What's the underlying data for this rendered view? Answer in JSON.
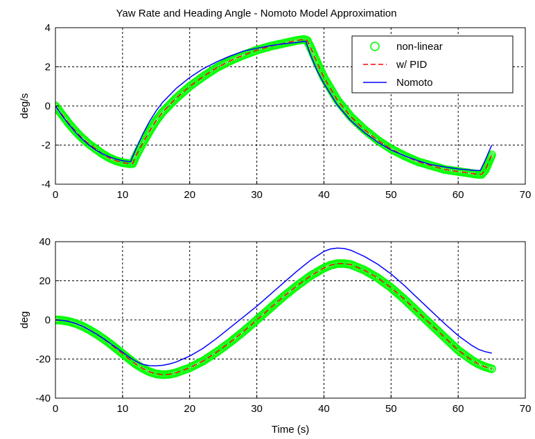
{
  "chart_data": [
    {
      "type": "line",
      "title": "Yaw Rate and Heading Angle - Nomoto Model Approximation",
      "xlabel": "",
      "ylabel": "deg/s",
      "xlim": [
        0,
        70
      ],
      "ylim": [
        -4,
        4
      ],
      "xticks": [
        "0",
        "10",
        "20",
        "30",
        "40",
        "50",
        "60",
        "70"
      ],
      "yticks": [
        "-4",
        "-2",
        "0",
        "2",
        "4"
      ],
      "grid": true,
      "legend_position": "top-right",
      "series": [
        {
          "name": "non-linear",
          "color": "#00ff00",
          "marker": "circle",
          "x": [
            0,
            1,
            2,
            3,
            4,
            5,
            6,
            7,
            8,
            9,
            10,
            11,
            11.5,
            12,
            13,
            14,
            15,
            16,
            18,
            20,
            22,
            24,
            26,
            28,
            30,
            32,
            34,
            36,
            37,
            37.5,
            38,
            39,
            40,
            42,
            44,
            46,
            48,
            50,
            52,
            54,
            56,
            58,
            60,
            62,
            63,
            63.5,
            64,
            64.5,
            65
          ],
          "y": [
            0,
            -0.45,
            -0.9,
            -1.3,
            -1.65,
            -1.95,
            -2.2,
            -2.45,
            -2.65,
            -2.8,
            -2.9,
            -2.95,
            -2.95,
            -2.55,
            -1.9,
            -1.3,
            -0.75,
            -0.3,
            0.4,
            1.0,
            1.5,
            1.95,
            2.3,
            2.6,
            2.85,
            3.05,
            3.2,
            3.35,
            3.4,
            3.35,
            3.0,
            2.2,
            1.45,
            0.3,
            -0.55,
            -1.2,
            -1.75,
            -2.2,
            -2.55,
            -2.85,
            -3.05,
            -3.25,
            -3.35,
            -3.45,
            -3.5,
            -3.5,
            -3.3,
            -2.9,
            -2.5
          ]
        },
        {
          "name": "w/ PID",
          "color": "#ff0000",
          "style": "dashed",
          "x": [
            0,
            1,
            2,
            3,
            4,
            5,
            6,
            7,
            8,
            9,
            10,
            11,
            11.5,
            12,
            13,
            14,
            15,
            16,
            18,
            20,
            22,
            24,
            26,
            28,
            30,
            32,
            34,
            36,
            37,
            37.5,
            38,
            39,
            40,
            42,
            44,
            46,
            48,
            50,
            52,
            54,
            56,
            58,
            60,
            62,
            63,
            63.5,
            64,
            64.5,
            65
          ],
          "y": [
            0,
            -0.45,
            -0.9,
            -1.3,
            -1.65,
            -1.95,
            -2.2,
            -2.45,
            -2.65,
            -2.8,
            -2.9,
            -2.95,
            -2.95,
            -2.55,
            -1.9,
            -1.3,
            -0.75,
            -0.3,
            0.4,
            1.0,
            1.5,
            1.95,
            2.3,
            2.6,
            2.85,
            3.05,
            3.2,
            3.35,
            3.4,
            3.35,
            3.0,
            2.2,
            1.45,
            0.3,
            -0.55,
            -1.2,
            -1.75,
            -2.2,
            -2.55,
            -2.85,
            -3.05,
            -3.25,
            -3.35,
            -3.45,
            -3.5,
            -3.5,
            -3.3,
            -2.9,
            -2.5
          ]
        },
        {
          "name": "Nomoto",
          "color": "#0000ff",
          "style": "solid",
          "x": [
            0,
            1,
            2,
            3,
            4,
            5,
            6,
            7,
            8,
            9,
            10,
            11,
            11.2,
            12,
            13,
            14,
            15,
            16,
            18,
            20,
            22,
            24,
            26,
            28,
            30,
            32,
            34,
            36,
            37,
            37.3,
            38,
            39,
            40,
            42,
            44,
            46,
            48,
            50,
            52,
            54,
            56,
            58,
            60,
            62,
            63,
            63.3,
            64,
            64.5,
            65
          ],
          "y": [
            0,
            -0.5,
            -0.95,
            -1.35,
            -1.7,
            -2.0,
            -2.25,
            -2.45,
            -2.6,
            -2.72,
            -2.8,
            -2.85,
            -2.85,
            -2.2,
            -1.45,
            -0.8,
            -0.25,
            0.2,
            0.9,
            1.45,
            1.9,
            2.25,
            2.55,
            2.8,
            2.95,
            3.08,
            3.18,
            3.25,
            3.3,
            3.3,
            2.6,
            1.8,
            1.15,
            0.05,
            -0.75,
            -1.35,
            -1.85,
            -2.25,
            -2.55,
            -2.8,
            -3.0,
            -3.12,
            -3.22,
            -3.28,
            -3.3,
            -3.3,
            -2.8,
            -2.4,
            -2.0
          ]
        }
      ]
    },
    {
      "type": "line",
      "title": "",
      "xlabel": "Time (s)",
      "ylabel": "deg",
      "xlim": [
        0,
        70
      ],
      "ylim": [
        -40,
        40
      ],
      "xticks": [
        "0",
        "10",
        "20",
        "30",
        "40",
        "50",
        "60",
        "70"
      ],
      "yticks": [
        "-40",
        "-20",
        "0",
        "20",
        "40"
      ],
      "grid": true,
      "series": [
        {
          "name": "non-linear",
          "color": "#00ff00",
          "marker": "circle",
          "x": [
            0,
            1,
            2,
            3,
            4,
            5,
            6,
            7,
            8,
            9,
            10,
            11,
            12,
            13,
            14,
            15,
            16,
            17,
            18,
            20,
            22,
            24,
            26,
            28,
            30,
            32,
            34,
            36,
            38,
            40,
            41,
            42,
            43,
            44,
            46,
            48,
            50,
            52,
            54,
            56,
            58,
            60,
            62,
            63,
            64,
            65
          ],
          "y": [
            0,
            -0.2,
            -0.8,
            -1.8,
            -3.2,
            -5.0,
            -7.0,
            -9.3,
            -11.8,
            -14.5,
            -17.3,
            -20.0,
            -22.7,
            -24.8,
            -26.5,
            -27.6,
            -28.0,
            -27.8,
            -27.0,
            -24.5,
            -21.0,
            -16.5,
            -11.5,
            -6.0,
            0.0,
            6.0,
            12.0,
            17.5,
            22.5,
            26.5,
            28.0,
            28.8,
            28.8,
            28.3,
            25.5,
            21.5,
            16.5,
            10.5,
            4.0,
            -2.5,
            -9.0,
            -15.5,
            -20.5,
            -22.5,
            -24.0,
            -25.0
          ]
        },
        {
          "name": "w/ PID",
          "color": "#ff0000",
          "style": "dashed",
          "x": [
            0,
            1,
            2,
            3,
            4,
            5,
            6,
            7,
            8,
            9,
            10,
            11,
            12,
            13,
            14,
            15,
            16,
            17,
            18,
            20,
            22,
            24,
            26,
            28,
            30,
            32,
            34,
            36,
            38,
            40,
            41,
            42,
            43,
            44,
            46,
            48,
            50,
            52,
            54,
            56,
            58,
            60,
            62,
            63,
            64,
            65
          ],
          "y": [
            0,
            -0.2,
            -0.8,
            -1.8,
            -3.2,
            -5.0,
            -7.0,
            -9.3,
            -11.8,
            -14.5,
            -17.3,
            -20.0,
            -22.7,
            -24.8,
            -26.5,
            -27.6,
            -28.0,
            -27.8,
            -27.0,
            -24.5,
            -21.0,
            -16.5,
            -11.5,
            -6.0,
            0.0,
            6.0,
            12.0,
            17.5,
            22.5,
            26.5,
            28.0,
            28.8,
            28.8,
            28.3,
            25.5,
            21.5,
            16.5,
            10.5,
            4.0,
            -2.5,
            -9.0,
            -15.5,
            -20.5,
            -22.5,
            -24.0,
            -25.0
          ]
        },
        {
          "name": "Nomoto",
          "color": "#0000ff",
          "style": "solid",
          "x": [
            0,
            1,
            2,
            3,
            4,
            5,
            6,
            7,
            8,
            9,
            10,
            11,
            12,
            13,
            14,
            15,
            16,
            17,
            18,
            20,
            22,
            24,
            26,
            28,
            30,
            32,
            34,
            36,
            38,
            40,
            41,
            42,
            43,
            44,
            46,
            48,
            50,
            52,
            54,
            56,
            58,
            60,
            62,
            63,
            64,
            65
          ],
          "y": [
            0,
            -0.2,
            -0.8,
            -1.8,
            -3.2,
            -5.0,
            -7.0,
            -9.2,
            -11.6,
            -14.0,
            -16.5,
            -19.0,
            -21.2,
            -22.7,
            -23.4,
            -23.5,
            -23.2,
            -22.5,
            -21.5,
            -18.5,
            -14.5,
            -9.5,
            -4.0,
            1.5,
            7.0,
            13.0,
            19.0,
            25.0,
            30.5,
            35.0,
            36.3,
            36.7,
            36.5,
            35.6,
            32.5,
            28.5,
            23.5,
            17.5,
            11.0,
            4.5,
            -2.0,
            -8.0,
            -13.0,
            -15.0,
            -16.2,
            -17.0
          ]
        }
      ]
    }
  ]
}
